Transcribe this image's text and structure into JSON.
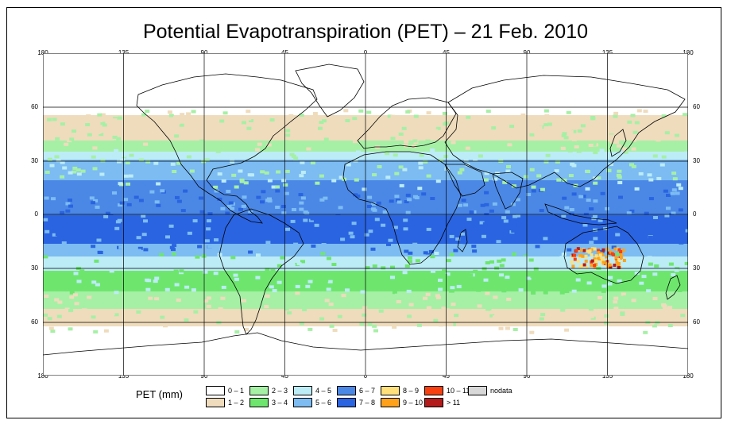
{
  "title": "Potential Evapotranspiration (PET) – 21 Feb. 2010",
  "axes": {
    "lon_ticks": [
      "180",
      "135",
      "90",
      "45",
      "0",
      "45",
      "90",
      "135",
      "180"
    ],
    "lat_ticks": [
      "60",
      "30",
      "0",
      "30",
      "60"
    ]
  },
  "legend": {
    "label": "PET (mm)",
    "items": [
      {
        "label": "0 – 1",
        "color": "#ffffff"
      },
      {
        "label": "1 – 2",
        "color": "#efdcbc"
      },
      {
        "label": "2 – 3",
        "color": "#a6f0a6"
      },
      {
        "label": "3 – 4",
        "color": "#6ee66e"
      },
      {
        "label": "4 – 5",
        "color": "#bcecf6"
      },
      {
        "label": "5 – 6",
        "color": "#7cbcf2"
      },
      {
        "label": "6 – 7",
        "color": "#4b88e6"
      },
      {
        "label": "7 – 8",
        "color": "#2a64e0"
      },
      {
        "label": "8 – 9",
        "color": "#ffe07a"
      },
      {
        "label": "9 – 10",
        "color": "#ffa21a"
      },
      {
        "label": "10 – 11",
        "color": "#f73f10"
      },
      {
        "label": "> 11",
        "color": "#b41a1a"
      },
      {
        "label": "nodata",
        "color": "#d8d8d8"
      }
    ]
  }
}
